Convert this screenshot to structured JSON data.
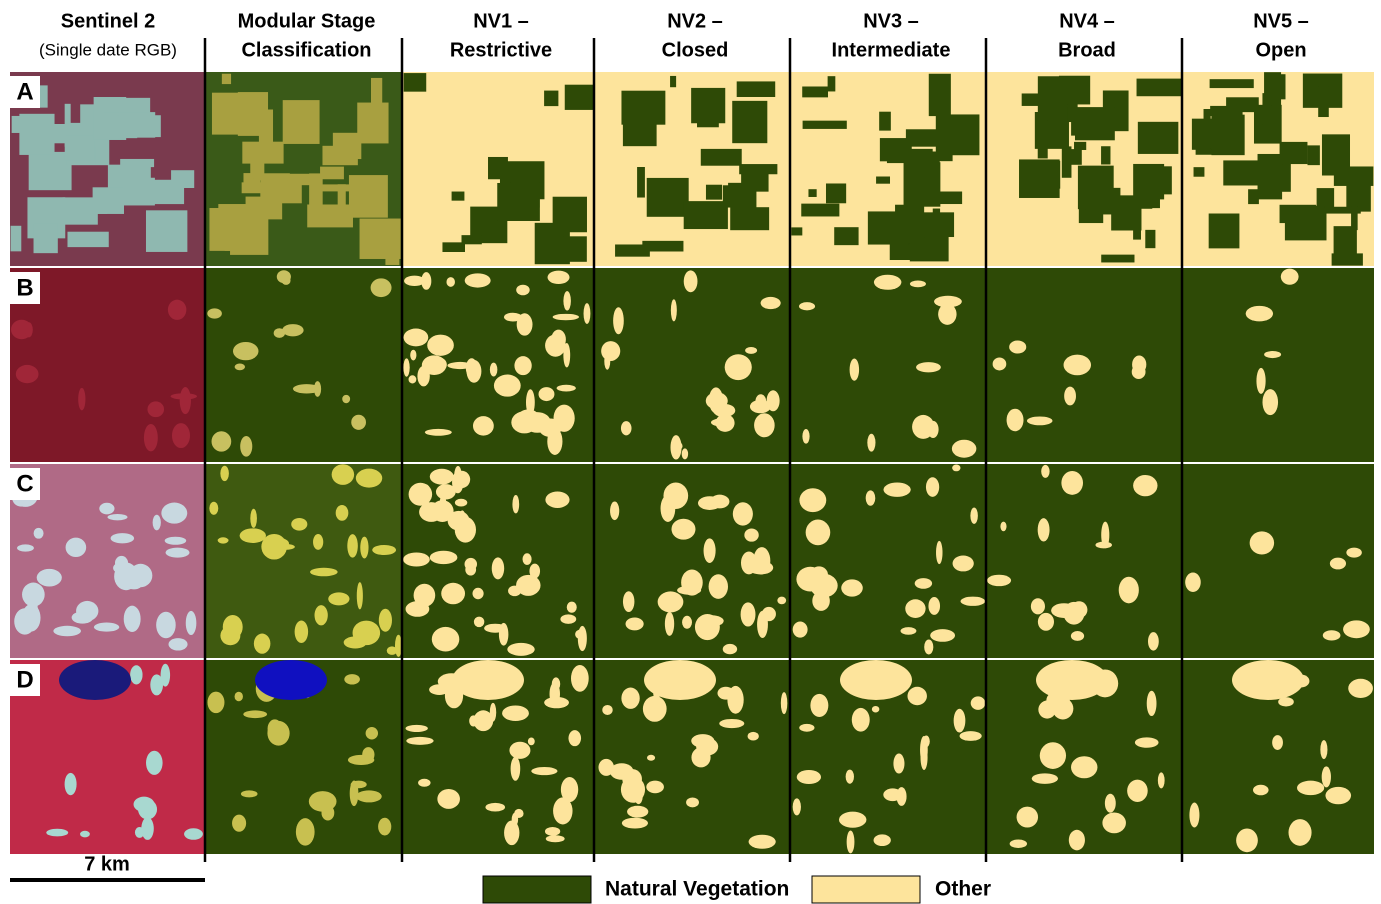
{
  "headers": [
    {
      "line1": "Sentinel 2",
      "line2": "(Single date RGB)"
    },
    {
      "line1": "Modular Stage",
      "line2": "Classification"
    },
    {
      "line1": "NV1 –",
      "line2": "Restrictive"
    },
    {
      "line1": "NV2 –",
      "line2": "Closed"
    },
    {
      "line1": "NV3 –",
      "line2": "Intermediate"
    },
    {
      "line1": "NV4 –",
      "line2": "Broad"
    },
    {
      "line1": "NV5 –",
      "line2": "Open"
    }
  ],
  "rows": [
    "A",
    "B",
    "C",
    "D"
  ],
  "scale_bar": "7 km",
  "legend": [
    {
      "label": "Natural Vegetation",
      "color": "#2e4a06"
    },
    {
      "label": "Other",
      "color": "#fde49c"
    }
  ]
}
